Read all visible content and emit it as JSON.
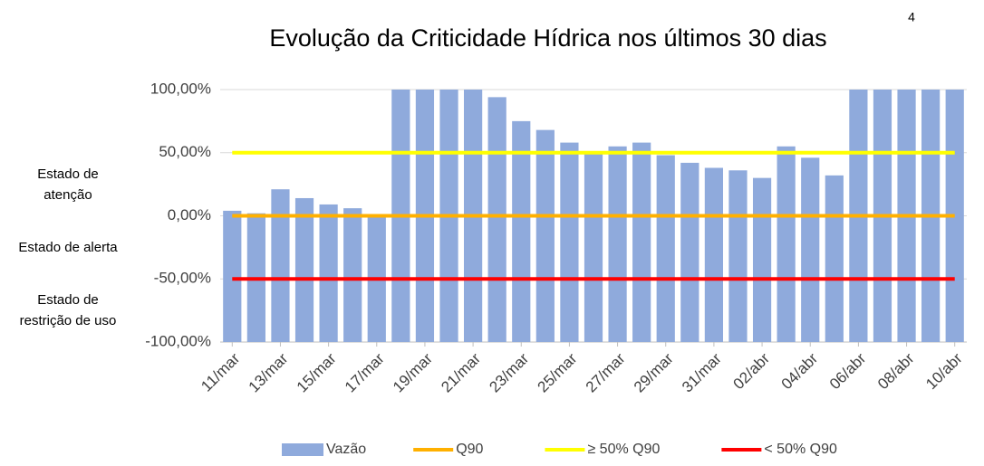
{
  "chart_data": {
    "type": "bar",
    "title": "Evolução da Criticidade Hídrica nos últimos 30 dias",
    "title_note": "4",
    "categories": [
      "11/mar",
      null,
      "13/mar",
      null,
      "15/mar",
      null,
      "17/mar",
      null,
      "19/mar",
      null,
      "21/mar",
      null,
      "23/mar",
      null,
      "25/mar",
      null,
      "27/mar",
      null,
      "29/mar",
      null,
      "31/mar",
      null,
      "02/abr",
      null,
      "04/abr",
      null,
      "06/abr",
      null,
      "08/abr",
      null,
      "10/abr"
    ],
    "series": [
      {
        "name": "Vazão",
        "color": "#8faadc",
        "values": [
          4,
          2,
          21,
          14,
          9,
          6,
          0,
          100,
          100,
          100,
          100,
          94,
          75,
          68,
          58,
          49,
          55,
          58,
          48,
          42,
          38,
          36,
          30,
          55,
          46,
          32,
          100,
          100,
          100,
          100,
          100
        ]
      }
    ],
    "reference_lines": [
      {
        "name": "Q90",
        "color": "#ffb000",
        "value": 0
      },
      {
        "name": "≥ 50% Q90",
        "color": "#ffff00",
        "value": 50
      },
      {
        "name": "< 50% Q90",
        "color": "#ff0000",
        "value": -50
      }
    ],
    "zones": [
      {
        "label": "Estado de atenção",
        "y": 25
      },
      {
        "label": "Estado de alerta",
        "y": -25
      },
      {
        "label": "Estado de restrição de uso",
        "y": -75
      }
    ],
    "ylim": [
      -100,
      100
    ],
    "yticks": [
      {
        "value": -100,
        "label": "-100,00%"
      },
      {
        "value": -50,
        "label": "-50,00%"
      },
      {
        "value": 0,
        "label": "0,00%"
      },
      {
        "value": 50,
        "label": "50,00%"
      },
      {
        "value": 100,
        "label": "100,00%"
      }
    ],
    "grid": true
  }
}
